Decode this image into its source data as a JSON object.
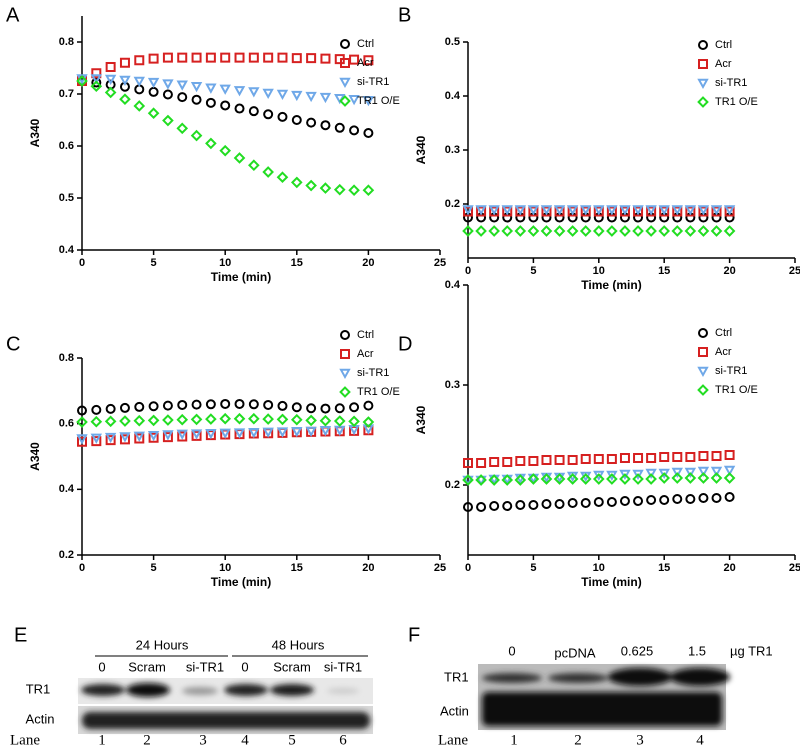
{
  "chart_data": [
    {
      "type": "scatter",
      "panel": "A",
      "x_label": "Time (min)",
      "y_label": "A340",
      "x": [
        0,
        1,
        2,
        3,
        4,
        5,
        6,
        7,
        8,
        9,
        10,
        11,
        12,
        13,
        14,
        15,
        16,
        17,
        18,
        19,
        20
      ],
      "xlim": [
        0,
        25
      ],
      "xticks": [
        0,
        5,
        10,
        15,
        20,
        25
      ],
      "ylim": [
        0.4,
        0.85
      ],
      "yticks": [
        0.4,
        0.5,
        0.6,
        0.7,
        0.8
      ],
      "series": [
        {
          "name": "Ctrl",
          "color": "#000000",
          "marker": "circle",
          "values": [
            0.725,
            0.722,
            0.718,
            0.714,
            0.709,
            0.704,
            0.699,
            0.694,
            0.689,
            0.683,
            0.678,
            0.672,
            0.667,
            0.661,
            0.656,
            0.65,
            0.645,
            0.64,
            0.635,
            0.63,
            0.625
          ]
        },
        {
          "name": "Acr",
          "color": "#d62020",
          "marker": "square",
          "values": [
            0.725,
            0.74,
            0.752,
            0.76,
            0.765,
            0.768,
            0.77,
            0.77,
            0.77,
            0.77,
            0.77,
            0.77,
            0.77,
            0.77,
            0.77,
            0.769,
            0.769,
            0.768,
            0.767,
            0.766,
            0.765
          ]
        },
        {
          "name": "si-TR1",
          "color": "#6fa8e8",
          "marker": "triangle-down",
          "values": [
            0.73,
            0.73,
            0.729,
            0.727,
            0.725,
            0.723,
            0.72,
            0.718,
            0.715,
            0.712,
            0.71,
            0.707,
            0.705,
            0.702,
            0.7,
            0.698,
            0.696,
            0.694,
            0.692,
            0.69,
            0.688
          ]
        },
        {
          "name": "TR1 O/E",
          "color": "#22dd22",
          "marker": "diamond",
          "values": [
            0.725,
            0.715,
            0.703,
            0.69,
            0.677,
            0.663,
            0.649,
            0.634,
            0.62,
            0.605,
            0.591,
            0.577,
            0.563,
            0.55,
            0.54,
            0.53,
            0.524,
            0.519,
            0.516,
            0.515,
            0.515
          ]
        }
      ]
    },
    {
      "type": "scatter",
      "panel": "B",
      "x_label": "Time (min)",
      "y_label": "A340",
      "x": [
        0,
        1,
        2,
        3,
        4,
        5,
        6,
        7,
        8,
        9,
        10,
        11,
        12,
        13,
        14,
        15,
        16,
        17,
        18,
        19,
        20
      ],
      "xlim": [
        0,
        25
      ],
      "xticks": [
        0,
        5,
        10,
        15,
        20,
        25
      ],
      "ylim": [
        0.1,
        0.5
      ],
      "yticks": [
        0.2,
        0.3,
        0.4,
        0.5
      ],
      "series": [
        {
          "name": "Ctrl",
          "color": "#000000",
          "marker": "circle",
          "values": [
            0.175,
            0.175,
            0.175,
            0.175,
            0.175,
            0.175,
            0.175,
            0.175,
            0.175,
            0.175,
            0.175,
            0.175,
            0.175,
            0.175,
            0.175,
            0.175,
            0.175,
            0.175,
            0.175,
            0.175,
            0.175
          ]
        },
        {
          "name": "Acr",
          "color": "#d62020",
          "marker": "square",
          "values": [
            0.186,
            0.186,
            0.186,
            0.186,
            0.186,
            0.186,
            0.186,
            0.186,
            0.186,
            0.186,
            0.186,
            0.186,
            0.186,
            0.186,
            0.186,
            0.186,
            0.186,
            0.186,
            0.186,
            0.186,
            0.186
          ]
        },
        {
          "name": "si-TR1",
          "color": "#6fa8e8",
          "marker": "triangle-down",
          "values": [
            0.19,
            0.19,
            0.19,
            0.19,
            0.19,
            0.19,
            0.19,
            0.19,
            0.19,
            0.19,
            0.19,
            0.19,
            0.19,
            0.19,
            0.19,
            0.19,
            0.19,
            0.19,
            0.19,
            0.19,
            0.19
          ]
        },
        {
          "name": "TR1 O/E",
          "color": "#22dd22",
          "marker": "diamond",
          "values": [
            0.15,
            0.15,
            0.15,
            0.15,
            0.15,
            0.15,
            0.15,
            0.15,
            0.15,
            0.15,
            0.15,
            0.15,
            0.15,
            0.15,
            0.15,
            0.15,
            0.15,
            0.15,
            0.15,
            0.15,
            0.15
          ]
        }
      ]
    },
    {
      "type": "scatter",
      "panel": "C",
      "x_label": "Time (min)",
      "y_label": "A340",
      "x": [
        0,
        1,
        2,
        3,
        4,
        5,
        6,
        7,
        8,
        9,
        10,
        11,
        12,
        13,
        14,
        15,
        16,
        17,
        18,
        19,
        20
      ],
      "xlim": [
        0,
        25
      ],
      "xticks": [
        0,
        5,
        10,
        15,
        20,
        25
      ],
      "ylim": [
        0.2,
        0.8
      ],
      "yticks": [
        0.2,
        0.4,
        0.6,
        0.8
      ],
      "series": [
        {
          "name": "Ctrl",
          "color": "#000000",
          "marker": "circle",
          "values": [
            0.64,
            0.642,
            0.645,
            0.648,
            0.651,
            0.653,
            0.655,
            0.657,
            0.658,
            0.659,
            0.66,
            0.66,
            0.659,
            0.657,
            0.654,
            0.65,
            0.647,
            0.646,
            0.647,
            0.65,
            0.655
          ]
        },
        {
          "name": "Acr",
          "color": "#d62020",
          "marker": "square",
          "values": [
            0.545,
            0.547,
            0.55,
            0.552,
            0.555,
            0.557,
            0.559,
            0.561,
            0.563,
            0.565,
            0.567,
            0.568,
            0.57,
            0.571,
            0.572,
            0.574,
            0.575,
            0.576,
            0.577,
            0.578,
            0.58
          ]
        },
        {
          "name": "si-TR1",
          "color": "#6fa8e8",
          "marker": "triangle-down",
          "values": [
            0.555,
            0.557,
            0.559,
            0.561,
            0.563,
            0.565,
            0.567,
            0.569,
            0.57,
            0.571,
            0.572,
            0.573,
            0.574,
            0.575,
            0.576,
            0.577,
            0.578,
            0.58,
            0.581,
            0.583,
            0.585
          ]
        },
        {
          "name": "TR1 O/E",
          "color": "#22dd22",
          "marker": "diamond",
          "values": [
            0.605,
            0.606,
            0.607,
            0.608,
            0.609,
            0.61,
            0.611,
            0.612,
            0.613,
            0.614,
            0.615,
            0.615,
            0.615,
            0.614,
            0.613,
            0.612,
            0.61,
            0.609,
            0.608,
            0.607,
            0.605
          ]
        }
      ]
    },
    {
      "type": "scatter",
      "panel": "D",
      "x_label": "Time (min)",
      "y_label": "A340",
      "x": [
        0,
        1,
        2,
        3,
        4,
        5,
        6,
        7,
        8,
        9,
        10,
        11,
        12,
        13,
        14,
        15,
        16,
        17,
        18,
        19,
        20
      ],
      "xlim": [
        0,
        25
      ],
      "xticks": [
        0,
        5,
        10,
        15,
        20,
        25
      ],
      "ylim": [
        0.13,
        0.4
      ],
      "yticks": [
        0.2,
        0.3,
        0.4
      ],
      "series": [
        {
          "name": "Ctrl",
          "color": "#000000",
          "marker": "circle",
          "values": [
            0.178,
            0.178,
            0.179,
            0.179,
            0.18,
            0.18,
            0.181,
            0.181,
            0.182,
            0.182,
            0.183,
            0.183,
            0.184,
            0.184,
            0.185,
            0.185,
            0.186,
            0.186,
            0.187,
            0.187,
            0.188
          ]
        },
        {
          "name": "Acr",
          "color": "#d62020",
          "marker": "square",
          "values": [
            0.222,
            0.222,
            0.223,
            0.223,
            0.224,
            0.224,
            0.225,
            0.225,
            0.225,
            0.226,
            0.226,
            0.226,
            0.227,
            0.227,
            0.227,
            0.228,
            0.228,
            0.228,
            0.229,
            0.229,
            0.23
          ]
        },
        {
          "name": "si-TR1",
          "color": "#6fa8e8",
          "marker": "triangle-down",
          "values": [
            0.205,
            0.205,
            0.206,
            0.206,
            0.207,
            0.207,
            0.208,
            0.208,
            0.209,
            0.209,
            0.21,
            0.21,
            0.211,
            0.211,
            0.212,
            0.212,
            0.213,
            0.213,
            0.214,
            0.214,
            0.215
          ]
        },
        {
          "name": "TR1 O/E",
          "color": "#22dd22",
          "marker": "diamond",
          "values": [
            0.205,
            0.205,
            0.205,
            0.205,
            0.205,
            0.206,
            0.206,
            0.206,
            0.206,
            0.206,
            0.206,
            0.206,
            0.206,
            0.206,
            0.206,
            0.207,
            0.207,
            0.207,
            0.207,
            0.207,
            0.207
          ]
        }
      ]
    }
  ],
  "blot_e": {
    "panel": "E",
    "groups": [
      "24 Hours",
      "48 Hours"
    ],
    "columns": [
      "0",
      "Scram",
      "si-TR1",
      "0",
      "Scram",
      "si-TR1"
    ],
    "rows": [
      "TR1",
      "Actin"
    ],
    "lane_label": "Lane",
    "lanes": [
      "1",
      "2",
      "3",
      "4",
      "5",
      "6"
    ]
  },
  "blot_f": {
    "panel": "F",
    "columns": [
      "0",
      "pcDNA",
      "0.625",
      "1.5"
    ],
    "unit": "µg TR1",
    "rows": [
      "TR1",
      "Actin"
    ],
    "lane_label": "Lane",
    "lanes": [
      "1",
      "2",
      "3",
      "4"
    ]
  }
}
